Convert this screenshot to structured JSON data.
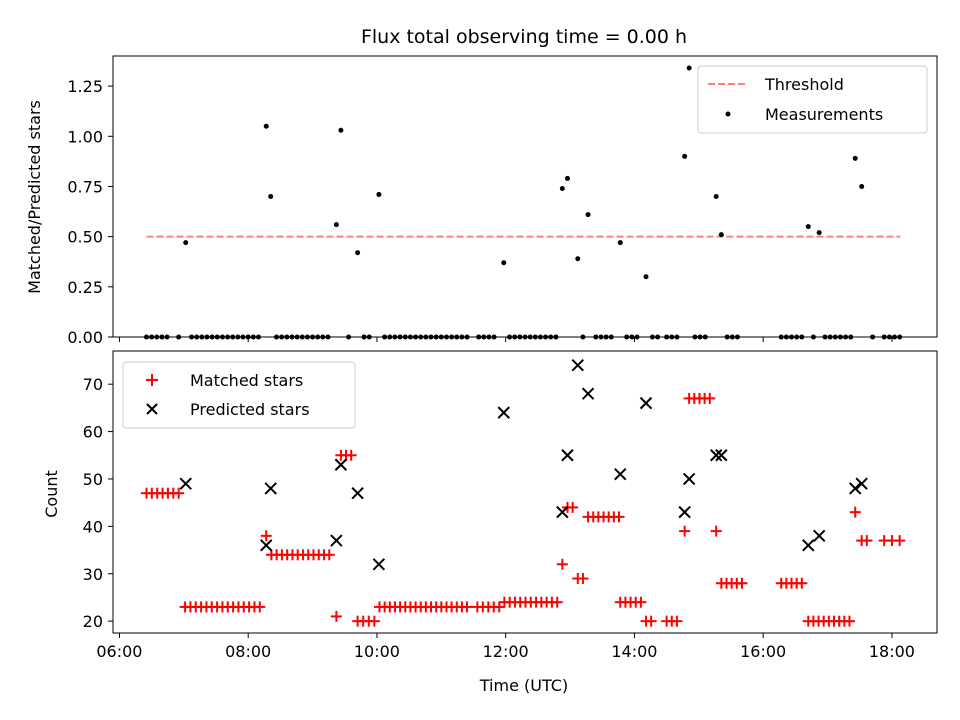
{
  "chart_data": [
    {
      "type": "scatter",
      "title": "Flux total observing time = 0.00 h",
      "xlabel": "",
      "ylabel": "Matched/Predicted stars",
      "ylim": [
        0,
        1.4
      ],
      "yticks": [
        "0.00",
        "0.25",
        "0.50",
        "0.75",
        "1.00",
        "1.25"
      ],
      "ytick_values": [
        0,
        0.25,
        0.5,
        0.75,
        1.0,
        1.25
      ],
      "xlim_hours": [
        5.9,
        18.7
      ],
      "xticks_hours": [
        6,
        8,
        10,
        12,
        14,
        16,
        18
      ],
      "legend": {
        "placement": "top-right",
        "entries": [
          "Threshold",
          "Measurements"
        ]
      },
      "threshold": {
        "name": "Threshold",
        "y": 0.5,
        "x_range_hours": [
          6.42,
          18.13
        ],
        "color": "#ff7f7f"
      },
      "series": [
        {
          "name": "Measurements",
          "color": "#000000",
          "points_hours": [
            [
              7.03,
              0.47
            ],
            [
              8.28,
              1.05
            ],
            [
              8.35,
              0.7
            ],
            [
              9.37,
              0.56
            ],
            [
              9.44,
              1.03
            ],
            [
              9.7,
              0.42
            ],
            [
              10.03,
              0.71
            ],
            [
              11.97,
              0.37
            ],
            [
              12.88,
              0.74
            ],
            [
              12.96,
              0.79
            ],
            [
              13.12,
              0.39
            ],
            [
              13.28,
              0.61
            ],
            [
              13.78,
              0.47
            ],
            [
              14.18,
              0.3
            ],
            [
              14.78,
              0.9
            ],
            [
              14.85,
              1.34
            ],
            [
              15.27,
              0.7
            ],
            [
              15.35,
              0.51
            ],
            [
              16.7,
              0.55
            ],
            [
              16.87,
              0.52
            ],
            [
              17.43,
              0.89
            ],
            [
              17.53,
              0.75
            ]
          ],
          "zero_points_hours": [
            6.42,
            6.5,
            6.58,
            6.66,
            6.74,
            6.92,
            7.12,
            7.2,
            7.28,
            7.36,
            7.44,
            7.52,
            7.6,
            7.68,
            7.76,
            7.84,
            7.92,
            8.0,
            8.08,
            8.16,
            8.44,
            8.52,
            8.6,
            8.68,
            8.76,
            8.84,
            8.92,
            9.0,
            9.08,
            9.16,
            9.24,
            9.56,
            9.8,
            9.88,
            10.12,
            10.2,
            10.28,
            10.36,
            10.44,
            10.52,
            10.6,
            10.68,
            10.76,
            10.84,
            10.92,
            11.0,
            11.08,
            11.16,
            11.24,
            11.32,
            11.4,
            11.58,
            11.66,
            11.74,
            11.82,
            12.06,
            12.14,
            12.22,
            12.3,
            12.38,
            12.46,
            12.54,
            12.62,
            12.7,
            12.78,
            13.2,
            13.4,
            13.48,
            13.56,
            13.64,
            13.88,
            13.96,
            14.04,
            14.28,
            14.36,
            14.5,
            14.58,
            14.66,
            14.94,
            15.02,
            15.1,
            15.44,
            15.52,
            15.6,
            16.28,
            16.36,
            16.44,
            16.52,
            16.6,
            16.78,
            16.96,
            17.04,
            17.12,
            17.2,
            17.28,
            17.36,
            17.7,
            17.88,
            17.96,
            18.04,
            18.12
          ]
        }
      ]
    },
    {
      "type": "scatter",
      "title": "",
      "xlabel": "Time (UTC)",
      "ylabel": "Count",
      "ylim": [
        17.5,
        77
      ],
      "yticks": [
        "20",
        "30",
        "40",
        "50",
        "60",
        "70"
      ],
      "ytick_values": [
        20,
        30,
        40,
        50,
        60,
        70
      ],
      "xlim_hours": [
        5.9,
        18.7
      ],
      "xticks": [
        "06:00",
        "08:00",
        "10:00",
        "12:00",
        "14:00",
        "16:00",
        "18:00"
      ],
      "xticks_hours": [
        6,
        8,
        10,
        12,
        14,
        16,
        18
      ],
      "legend": {
        "placement": "top-left",
        "entries": [
          "Matched stars",
          "Predicted stars"
        ]
      },
      "series": [
        {
          "name": "Matched stars",
          "marker": "plus",
          "color": "#ff0000",
          "runs": [
            {
              "from": 6.42,
              "to": 6.92,
              "y": 47,
              "n": 7
            },
            {
              "from": 7.02,
              "to": 8.18,
              "y": 23,
              "n": 15
            },
            {
              "from": 8.28,
              "to": 8.28,
              "y": 38,
              "n": 1
            },
            {
              "from": 8.36,
              "to": 9.26,
              "y": 34,
              "n": 12
            },
            {
              "from": 9.37,
              "to": 9.37,
              "y": 21,
              "n": 1
            },
            {
              "from": 9.44,
              "to": 9.6,
              "y": 55,
              "n": 3
            },
            {
              "from": 9.7,
              "to": 9.96,
              "y": 20,
              "n": 4
            },
            {
              "from": 10.04,
              "to": 11.4,
              "y": 23,
              "n": 18
            },
            {
              "from": 11.56,
              "to": 11.9,
              "y": 23,
              "n": 5
            },
            {
              "from": 11.98,
              "to": 12.8,
              "y": 24,
              "n": 11
            },
            {
              "from": 12.88,
              "to": 12.88,
              "y": 32,
              "n": 1
            },
            {
              "from": 12.96,
              "to": 13.04,
              "y": 44,
              "n": 2
            },
            {
              "from": 13.12,
              "to": 13.2,
              "y": 29,
              "n": 2
            },
            {
              "from": 13.28,
              "to": 13.76,
              "y": 42,
              "n": 7
            },
            {
              "from": 13.78,
              "to": 14.1,
              "y": 24,
              "n": 5
            },
            {
              "from": 14.18,
              "to": 14.26,
              "y": 20,
              "n": 2
            },
            {
              "from": 14.5,
              "to": 14.66,
              "y": 20,
              "n": 3
            },
            {
              "from": 14.78,
              "to": 14.78,
              "y": 39,
              "n": 1
            },
            {
              "from": 14.85,
              "to": 15.17,
              "y": 67,
              "n": 5
            },
            {
              "from": 15.27,
              "to": 15.27,
              "y": 39,
              "n": 1
            },
            {
              "from": 15.35,
              "to": 15.67,
              "y": 28,
              "n": 5
            },
            {
              "from": 16.28,
              "to": 16.6,
              "y": 28,
              "n": 5
            },
            {
              "from": 16.7,
              "to": 17.34,
              "y": 20,
              "n": 9
            },
            {
              "from": 17.43,
              "to": 17.43,
              "y": 43,
              "n": 1
            },
            {
              "from": 17.53,
              "to": 17.61,
              "y": 37,
              "n": 2
            },
            {
              "from": 17.88,
              "to": 18.12,
              "y": 37,
              "n": 3
            }
          ]
        },
        {
          "name": "Predicted stars",
          "marker": "x",
          "color": "#000000",
          "points_hours": [
            [
              7.03,
              49
            ],
            [
              8.28,
              36
            ],
            [
              8.35,
              48
            ],
            [
              9.37,
              37
            ],
            [
              9.44,
              53
            ],
            [
              9.7,
              47
            ],
            [
              10.03,
              32
            ],
            [
              11.97,
              64
            ],
            [
              12.88,
              43
            ],
            [
              12.96,
              55
            ],
            [
              13.12,
              74
            ],
            [
              13.28,
              68
            ],
            [
              13.78,
              51
            ],
            [
              14.18,
              66
            ],
            [
              14.78,
              43
            ],
            [
              14.85,
              50
            ],
            [
              15.27,
              55
            ],
            [
              15.35,
              55
            ],
            [
              16.7,
              36
            ],
            [
              16.87,
              38
            ],
            [
              17.43,
              48
            ],
            [
              17.53,
              49
            ]
          ]
        }
      ]
    }
  ]
}
